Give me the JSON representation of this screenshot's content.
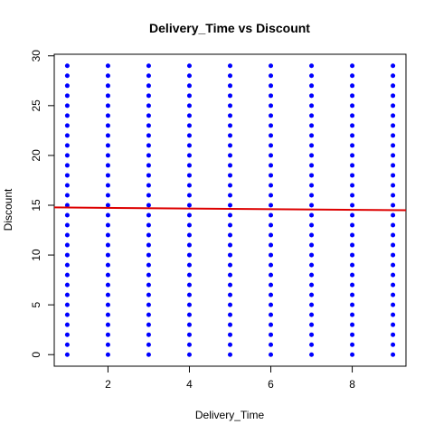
{
  "chart_data": {
    "type": "scatter",
    "title": "Delivery_Time vs Discount",
    "xlabel": "Delivery_Time",
    "ylabel": "Discount",
    "color": "#0000ff",
    "x": [
      1,
      1,
      1,
      1,
      1,
      1,
      1,
      1,
      1,
      1,
      1,
      1,
      1,
      1,
      1,
      1,
      1,
      1,
      1,
      1,
      1,
      1,
      1,
      1,
      1,
      1,
      1,
      1,
      1,
      1,
      2,
      2,
      2,
      2,
      2,
      2,
      2,
      2,
      2,
      2,
      2,
      2,
      2,
      2,
      2,
      2,
      2,
      2,
      2,
      2,
      2,
      2,
      2,
      2,
      2,
      2,
      2,
      2,
      2,
      2,
      3,
      3,
      3,
      3,
      3,
      3,
      3,
      3,
      3,
      3,
      3,
      3,
      3,
      3,
      3,
      3,
      3,
      3,
      3,
      3,
      3,
      3,
      3,
      3,
      3,
      3,
      3,
      3,
      3,
      3,
      4,
      4,
      4,
      4,
      4,
      4,
      4,
      4,
      4,
      4,
      4,
      4,
      4,
      4,
      4,
      4,
      4,
      4,
      4,
      4,
      4,
      4,
      4,
      4,
      4,
      4,
      4,
      4,
      4,
      4,
      5,
      5,
      5,
      5,
      5,
      5,
      5,
      5,
      5,
      5,
      5,
      5,
      5,
      5,
      5,
      5,
      5,
      5,
      5,
      5,
      5,
      5,
      5,
      5,
      5,
      5,
      5,
      5,
      5,
      5,
      6,
      6,
      6,
      6,
      6,
      6,
      6,
      6,
      6,
      6,
      6,
      6,
      6,
      6,
      6,
      6,
      6,
      6,
      6,
      6,
      6,
      6,
      6,
      6,
      6,
      6,
      6,
      6,
      6,
      6,
      7,
      7,
      7,
      7,
      7,
      7,
      7,
      7,
      7,
      7,
      7,
      7,
      7,
      7,
      7,
      7,
      7,
      7,
      7,
      7,
      7,
      7,
      7,
      7,
      7,
      7,
      7,
      7,
      7,
      7,
      8,
      8,
      8,
      8,
      8,
      8,
      8,
      8,
      8,
      8,
      8,
      8,
      8,
      8,
      8,
      8,
      8,
      8,
      8,
      8,
      8,
      8,
      8,
      8,
      8,
      8,
      8,
      8,
      8,
      8,
      9,
      9,
      9,
      9,
      9,
      9,
      9,
      9,
      9,
      9,
      9,
      9,
      9,
      9,
      9,
      9,
      9,
      9,
      9,
      9,
      9,
      9,
      9,
      9,
      9,
      9,
      9,
      9,
      9,
      9
    ],
    "y": [
      0,
      1,
      2,
      3,
      4,
      5,
      6,
      7,
      8,
      9,
      10,
      11,
      12,
      13,
      14,
      15,
      16,
      17,
      18,
      19,
      20,
      21,
      22,
      23,
      24,
      25,
      26,
      27,
      28,
      29,
      0,
      1,
      2,
      3,
      4,
      5,
      6,
      7,
      8,
      9,
      10,
      11,
      12,
      13,
      14,
      15,
      16,
      17,
      18,
      19,
      20,
      21,
      22,
      23,
      24,
      25,
      26,
      27,
      28,
      29,
      0,
      1,
      2,
      3,
      4,
      5,
      6,
      7,
      8,
      9,
      10,
      11,
      12,
      13,
      14,
      15,
      16,
      17,
      18,
      19,
      20,
      21,
      22,
      23,
      24,
      25,
      26,
      27,
      28,
      29,
      0,
      1,
      2,
      3,
      4,
      5,
      6,
      7,
      8,
      9,
      10,
      11,
      12,
      13,
      14,
      15,
      16,
      17,
      18,
      19,
      20,
      21,
      22,
      23,
      24,
      25,
      26,
      27,
      28,
      29,
      0,
      1,
      2,
      3,
      4,
      5,
      6,
      7,
      8,
      9,
      10,
      11,
      12,
      13,
      14,
      15,
      16,
      17,
      18,
      19,
      20,
      21,
      22,
      23,
      24,
      25,
      26,
      27,
      28,
      29,
      0,
      1,
      2,
      3,
      4,
      5,
      6,
      7,
      8,
      9,
      10,
      11,
      12,
      13,
      14,
      15,
      16,
      17,
      18,
      19,
      20,
      21,
      22,
      23,
      24,
      25,
      26,
      27,
      28,
      29,
      0,
      1,
      2,
      3,
      4,
      5,
      6,
      7,
      8,
      9,
      10,
      11,
      12,
      13,
      14,
      15,
      16,
      17,
      18,
      19,
      20,
      21,
      22,
      23,
      24,
      25,
      26,
      27,
      28,
      29,
      0,
      1,
      2,
      3,
      4,
      5,
      6,
      7,
      8,
      9,
      10,
      11,
      12,
      13,
      14,
      15,
      16,
      17,
      18,
      19,
      20,
      21,
      22,
      23,
      24,
      25,
      26,
      27,
      28,
      29,
      0,
      1,
      2,
      3,
      4,
      5,
      6,
      7,
      8,
      9,
      10,
      11,
      12,
      13,
      14,
      15,
      16,
      17,
      18,
      19,
      20,
      21,
      22,
      23,
      24,
      25,
      26,
      27,
      28,
      29
    ],
    "fit_line": {
      "x": [
        0.68,
        9.32
      ],
      "y": [
        14.78,
        14.5
      ],
      "color": "#dd0000"
    },
    "xlim": [
      0.68,
      9.32
    ],
    "ylim": [
      -1.16,
      30.16
    ],
    "xticks": [
      2,
      4,
      6,
      8
    ],
    "yticks": [
      0,
      5,
      10,
      15,
      20,
      25,
      30
    ]
  }
}
